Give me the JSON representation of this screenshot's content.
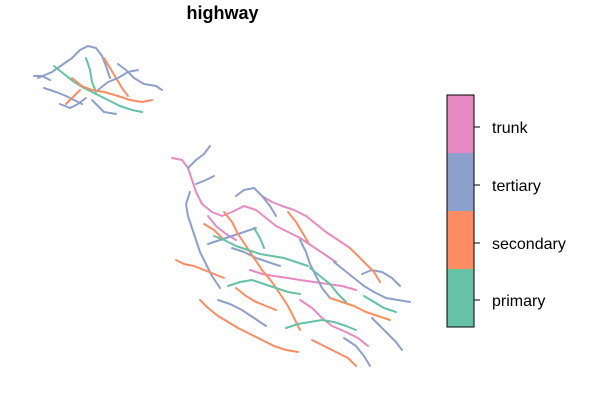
{
  "map": {
    "title": "highway"
  },
  "legend": {
    "items": [
      {
        "label": "trunk",
        "color": "#e78ac3"
      },
      {
        "label": "tertiary",
        "color": "#8da0cb"
      },
      {
        "label": "secondary",
        "color": "#fc8d62"
      },
      {
        "label": "primary",
        "color": "#66c2a5"
      }
    ]
  }
}
